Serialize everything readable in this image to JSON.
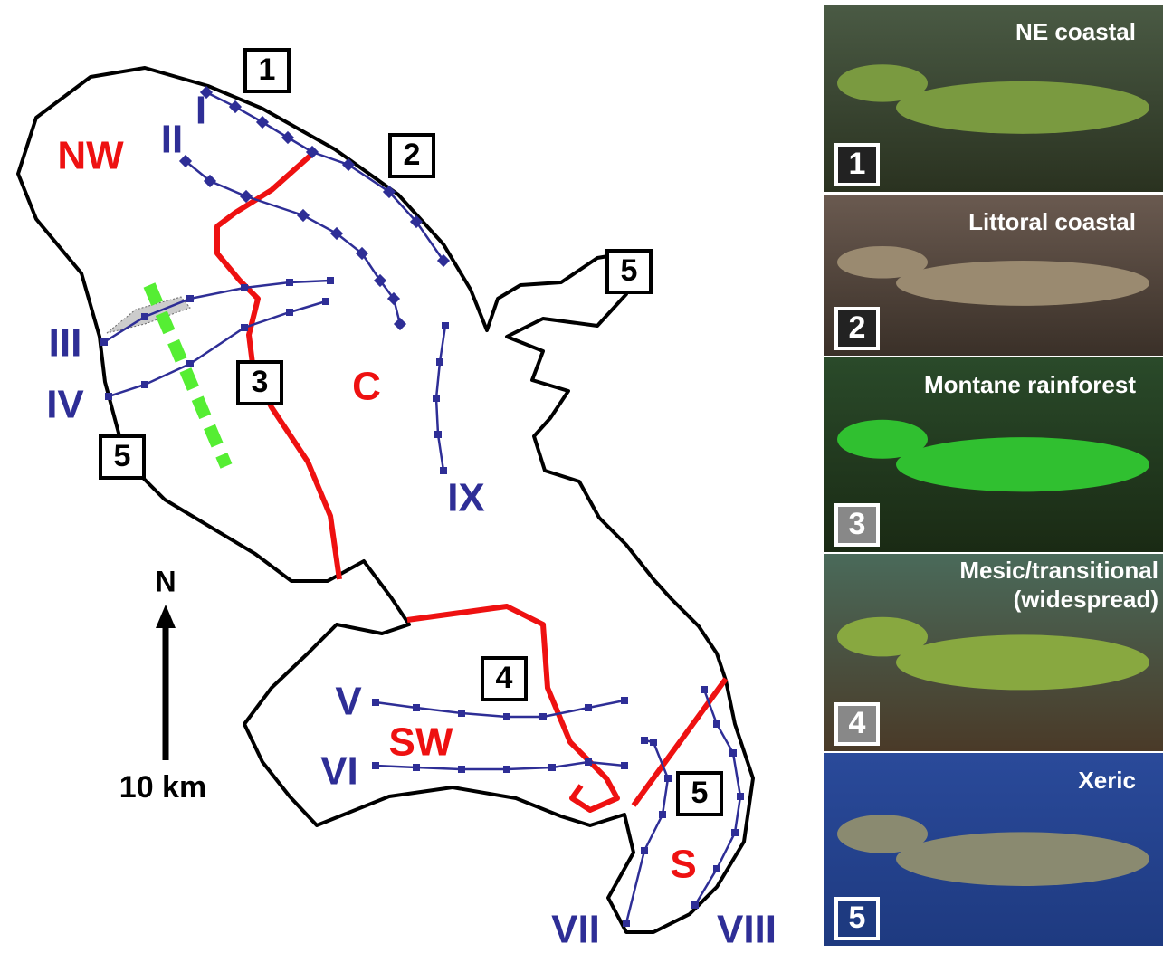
{
  "map": {
    "regions": [
      "NW",
      "C",
      "SW",
      "S"
    ],
    "transects": [
      "I",
      "II",
      "III",
      "IV",
      "V",
      "VI",
      "VII",
      "VIII",
      "IX"
    ],
    "habitat_markers": [
      "1",
      "2",
      "5",
      "3",
      "5",
      "4",
      "5"
    ],
    "north": "N",
    "scale": "10 km"
  },
  "panels": [
    {
      "label": "NE coastal",
      "number": "1"
    },
    {
      "label": "Littoral coastal",
      "number": "2"
    },
    {
      "label": "Montane rainforest",
      "number": "3"
    },
    {
      "label": "Mesic/transitional",
      "label2": "(widespread)",
      "number": "4"
    },
    {
      "label": "Xeric",
      "number": "5"
    }
  ]
}
